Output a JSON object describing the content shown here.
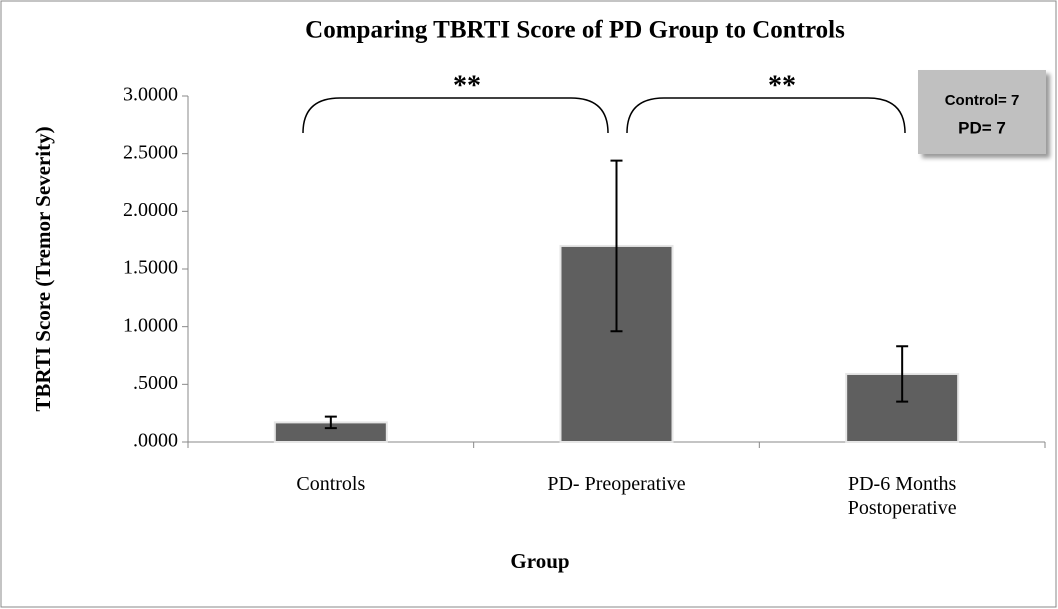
{
  "chart_data": {
    "type": "bar",
    "title": "Comparing TBRTI Score of PD Group to Controls",
    "x_label": "Group",
    "y_label": "TBRTI Score (Tremor Severity)",
    "categories": [
      "Controls",
      "PD- Preoperative",
      "PD-6 Months Postoperative"
    ],
    "values": [
      0.17,
      1.7,
      0.59
    ],
    "errors": [
      0.05,
      0.74,
      0.24
    ],
    "color": "#5f5f5f",
    "ylim": [
      0,
      3
    ],
    "yticks": [
      {
        "value": 0,
        "label": ".0000"
      },
      {
        "value": 0.5,
        "label": ".5000"
      },
      {
        "value": 1,
        "label": "1.0000"
      },
      {
        "value": 1.5,
        "label": "1.5000"
      },
      {
        "value": 2,
        "label": "2.0000"
      },
      {
        "value": 2.5,
        "label": "2.5000"
      },
      {
        "value": 3,
        "label": "3.0000"
      }
    ],
    "grid": false,
    "annotations": [
      "**",
      "**"
    ],
    "note": [
      "Control= 7",
      "PD= 7"
    ]
  }
}
